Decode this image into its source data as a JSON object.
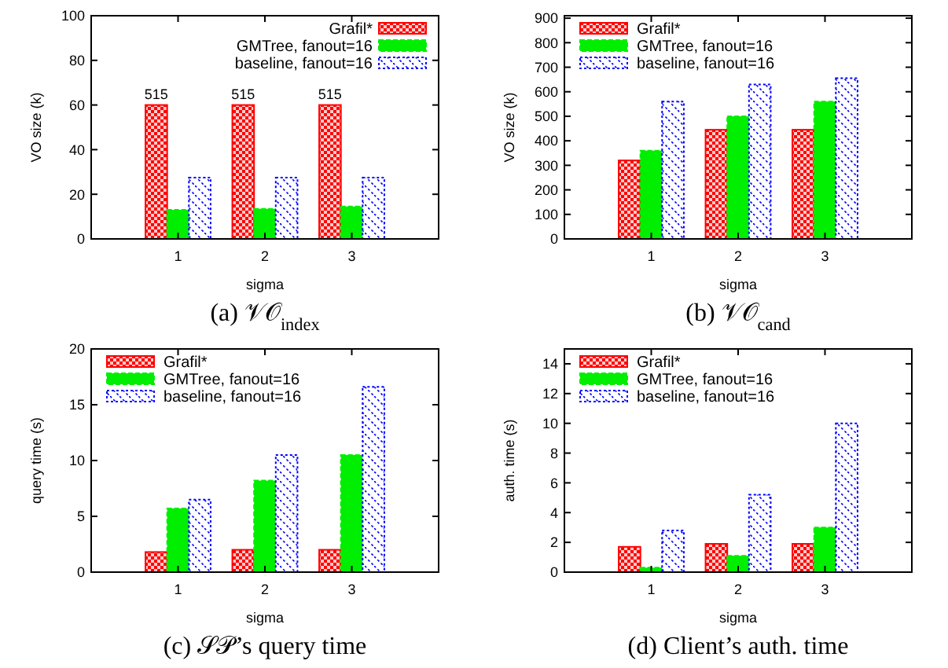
{
  "chart_data": [
    {
      "type": "bar",
      "title": "(a) 𝒱𝒪$_{index}$",
      "xlabel": "sigma",
      "ylabel": "VO size (k)",
      "categories": [
        "1",
        "2",
        "3"
      ],
      "series": [
        {
          "name": "Grafil*",
          "color": "#ff0000",
          "values": [
            60,
            60,
            60
          ]
        },
        {
          "name": "GMTree, fanout=16",
          "color": "#00ee00",
          "values": [
            13,
            13.5,
            14.5
          ]
        },
        {
          "name": "baseline, fanout=16",
          "color": "#0000ff",
          "values": [
            27.5,
            27.5,
            27.5
          ]
        }
      ],
      "annotations": [
        "515",
        "515",
        "515"
      ],
      "ylim": [
        0,
        100
      ],
      "yticks": [
        0,
        20,
        40,
        60,
        80,
        100
      ],
      "legend": "top right",
      "grid": false
    },
    {
      "type": "bar",
      "title": "(b) 𝒱𝒪$_{cand}$",
      "xlabel": "sigma",
      "ylabel": "VO size (k)",
      "categories": [
        "1",
        "2",
        "3"
      ],
      "series": [
        {
          "name": "Grafil*",
          "color": "#ff0000",
          "values": [
            320,
            445,
            445
          ]
        },
        {
          "name": "GMTree, fanout=16",
          "color": "#00ee00",
          "values": [
            360,
            500,
            560
          ]
        },
        {
          "name": "baseline, fanout=16",
          "color": "#0000ff",
          "values": [
            560,
            630,
            655
          ]
        }
      ],
      "ylim": [
        0,
        910
      ],
      "yticks": [
        0,
        100,
        200,
        300,
        400,
        500,
        600,
        700,
        800,
        900
      ],
      "legend": "top left",
      "grid": false
    },
    {
      "type": "bar",
      "title": "(c) 𝒮𝒫’s query time",
      "xlabel": "sigma",
      "ylabel": "query time (s)",
      "categories": [
        "1",
        "2",
        "3"
      ],
      "series": [
        {
          "name": "Grafil*",
          "color": "#ff0000",
          "values": [
            1.8,
            2,
            2
          ]
        },
        {
          "name": "GMTree, fanout=16",
          "color": "#00ee00",
          "values": [
            5.7,
            8.2,
            10.5
          ]
        },
        {
          "name": "baseline, fanout=16",
          "color": "#0000ff",
          "values": [
            6.5,
            10.5,
            16.6
          ]
        }
      ],
      "ylim": [
        0,
        20
      ],
      "yticks": [
        0,
        5,
        10,
        15,
        20
      ],
      "legend": "top left",
      "grid": false
    },
    {
      "type": "bar",
      "title": "(d) Client’s auth. time",
      "xlabel": "sigma",
      "ylabel": "auth. time (s)",
      "categories": [
        "1",
        "2",
        "3"
      ],
      "series": [
        {
          "name": "Grafil*",
          "color": "#ff0000",
          "values": [
            1.7,
            1.9,
            1.9
          ]
        },
        {
          "name": "GMTree, fanout=16",
          "color": "#00ee00",
          "values": [
            0.3,
            1.1,
            3.0
          ]
        },
        {
          "name": "baseline, fanout=16",
          "color": "#0000ff",
          "values": [
            2.8,
            5.2,
            10
          ]
        }
      ],
      "ylim": [
        0,
        15
      ],
      "yticks": [
        0,
        2,
        4,
        6,
        8,
        10,
        12,
        14
      ],
      "legend": "top left",
      "grid": false
    }
  ]
}
